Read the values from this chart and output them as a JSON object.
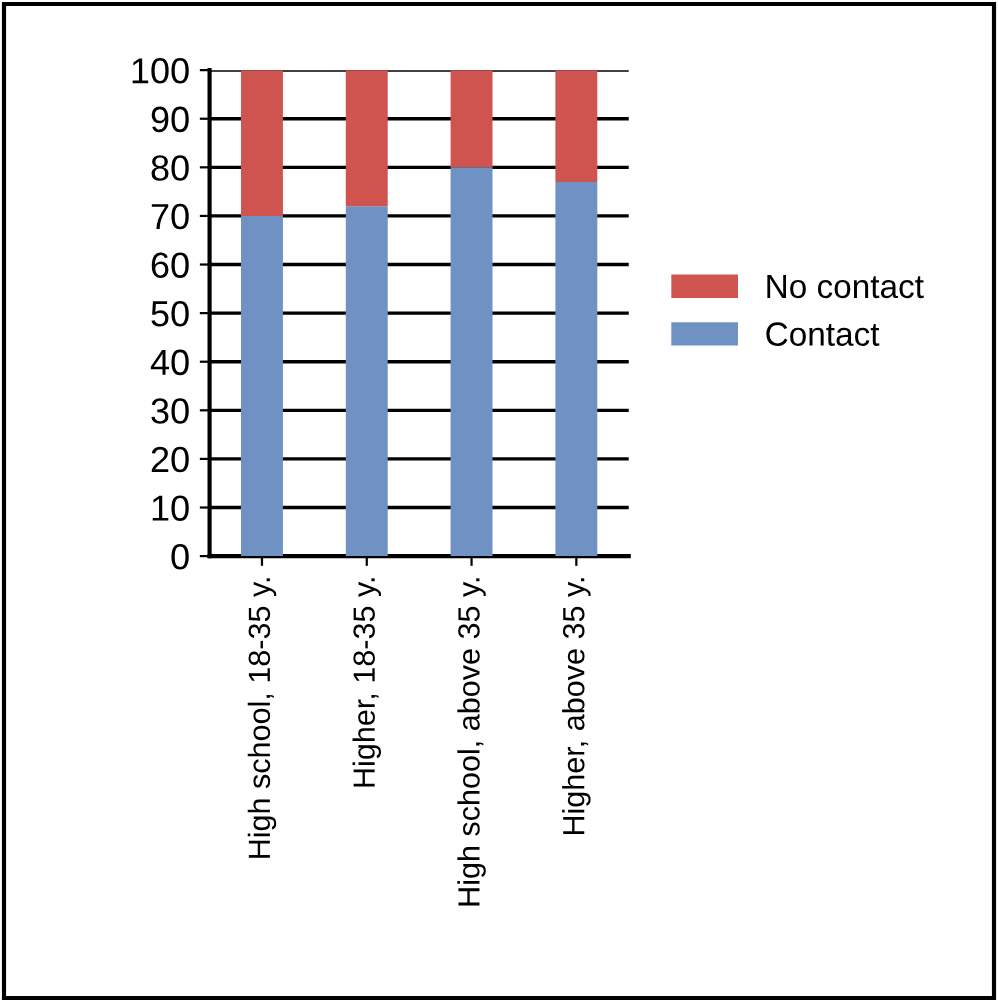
{
  "chart_data": {
    "type": "bar",
    "stacked": true,
    "categories": [
      "High school, 18-35 y.",
      "Higher, 18-35 y.",
      "High school, above 35 y.",
      "Higher, above 35 y."
    ],
    "series": [
      {
        "name": "Contact",
        "color": "#6f91c4",
        "values": [
          70,
          72,
          80,
          77
        ]
      },
      {
        "name": "No contact",
        "color": "#cf5450",
        "values": [
          30,
          28,
          20,
          23
        ]
      }
    ],
    "ylim": [
      0,
      100
    ],
    "yticks": [
      0,
      10,
      20,
      30,
      40,
      50,
      60,
      70,
      80,
      90,
      100
    ],
    "grid": "y",
    "legend": "right"
  }
}
